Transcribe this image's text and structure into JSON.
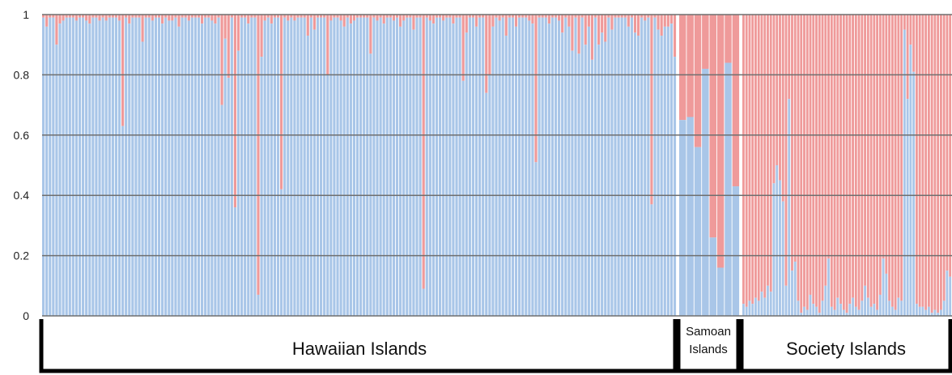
{
  "chart_data": {
    "type": "bar",
    "stacked": true,
    "ylim": [
      0,
      1
    ],
    "yticks": [
      "0",
      "0.2",
      "0.4",
      "0.6",
      "0.8",
      "1"
    ],
    "grid": true,
    "colors": {
      "blue": "#a9c6e8",
      "red": "#ef9a9a",
      "gridline": "#6f6f6f",
      "bracket": "#000000"
    },
    "groups": [
      {
        "label": "Hawaiian Islands",
        "blue_values": [
          0.99,
          0.96,
          0.99,
          0.99,
          0.9,
          0.97,
          0.98,
          0.99,
          0.99,
          0.99,
          0.98,
          0.99,
          0.99,
          0.98,
          0.97,
          0.99,
          0.99,
          0.98,
          0.99,
          0.98,
          0.99,
          0.99,
          0.99,
          0.98,
          0.63,
          0.99,
          0.97,
          0.99,
          0.99,
          0.99,
          0.91,
          0.99,
          0.99,
          0.98,
          0.99,
          0.99,
          0.97,
          0.99,
          0.98,
          0.98,
          0.99,
          0.96,
          0.99,
          0.99,
          0.98,
          0.99,
          0.99,
          0.99,
          0.97,
          0.99,
          0.99,
          0.98,
          0.97,
          0.99,
          0.7,
          0.92,
          0.79,
          0.99,
          0.36,
          0.88,
          0.99,
          0.99,
          0.97,
          0.99,
          0.99,
          0.07,
          0.86,
          0.98,
          0.99,
          0.97,
          0.99,
          0.99,
          0.42,
          0.99,
          0.98,
          0.99,
          0.98,
          0.99,
          0.99,
          0.99,
          0.93,
          0.99,
          0.95,
          0.99,
          0.99,
          0.99,
          0.8,
          0.98,
          0.99,
          0.99,
          0.98,
          0.96,
          0.99,
          0.97,
          0.98,
          0.99,
          0.99,
          0.99,
          0.99,
          0.87,
          0.99,
          0.98,
          0.99,
          0.97,
          0.99,
          0.99,
          0.98,
          0.99,
          0.96,
          0.98,
          0.99,
          0.99,
          0.95,
          0.99,
          0.99,
          0.09,
          0.99,
          0.98,
          0.97,
          0.99,
          0.99,
          0.98,
          0.99,
          0.99,
          0.97,
          0.99,
          0.99,
          0.78,
          0.94,
          0.99,
          0.99,
          0.96,
          0.99,
          0.99,
          0.74,
          0.8,
          0.96,
          0.99,
          0.98,
          0.99,
          0.93,
          0.99,
          0.99,
          0.96,
          0.99,
          0.99,
          0.99,
          0.98,
          0.97,
          0.51,
          0.99,
          0.99,
          0.99,
          0.97,
          0.99,
          0.99,
          0.98,
          0.94,
          0.99,
          0.96,
          0.88,
          0.99,
          0.87,
          0.99,
          0.9,
          0.96,
          0.85,
          0.99,
          0.9,
          0.94,
          0.91,
          0.99,
          0.95,
          0.99,
          0.99,
          0.99,
          0.99,
          0.96,
          0.99,
          0.94,
          0.93,
          0.99,
          0.98,
          0.99,
          0.37,
          0.99,
          0.95,
          0.93,
          0.96,
          0.96,
          0.97,
          0.86
        ]
      },
      {
        "label": "Samoan\nIslands",
        "blue_values": [
          0.65,
          0.66,
          0.56,
          0.82,
          0.26,
          0.16,
          0.84,
          0.43
        ]
      },
      {
        "label": "Society Islands",
        "blue_values": [
          0.04,
          0.03,
          0.05,
          0.04,
          0.06,
          0.05,
          0.08,
          0.06,
          0.1,
          0.08,
          0.44,
          0.5,
          0.45,
          0.38,
          0.1,
          0.72,
          0.15,
          0.18,
          0.05,
          0.01,
          0.03,
          0.02,
          0.07,
          0.04,
          0.03,
          0.01,
          0.05,
          0.1,
          0.19,
          0.03,
          0.02,
          0.06,
          0.04,
          0.02,
          0.01,
          0.04,
          0.06,
          0.03,
          0.02,
          0.05,
          0.1,
          0.06,
          0.03,
          0.04,
          0.02,
          0.07,
          0.19,
          0.14,
          0.05,
          0.03,
          0.02,
          0.06,
          0.05,
          0.95,
          0.72,
          0.9,
          0.81,
          0.04,
          0.03,
          0.03,
          0.02,
          0.03,
          0.01,
          0.02,
          0.01,
          0.02,
          0.05,
          0.15,
          0.13
        ]
      }
    ]
  }
}
